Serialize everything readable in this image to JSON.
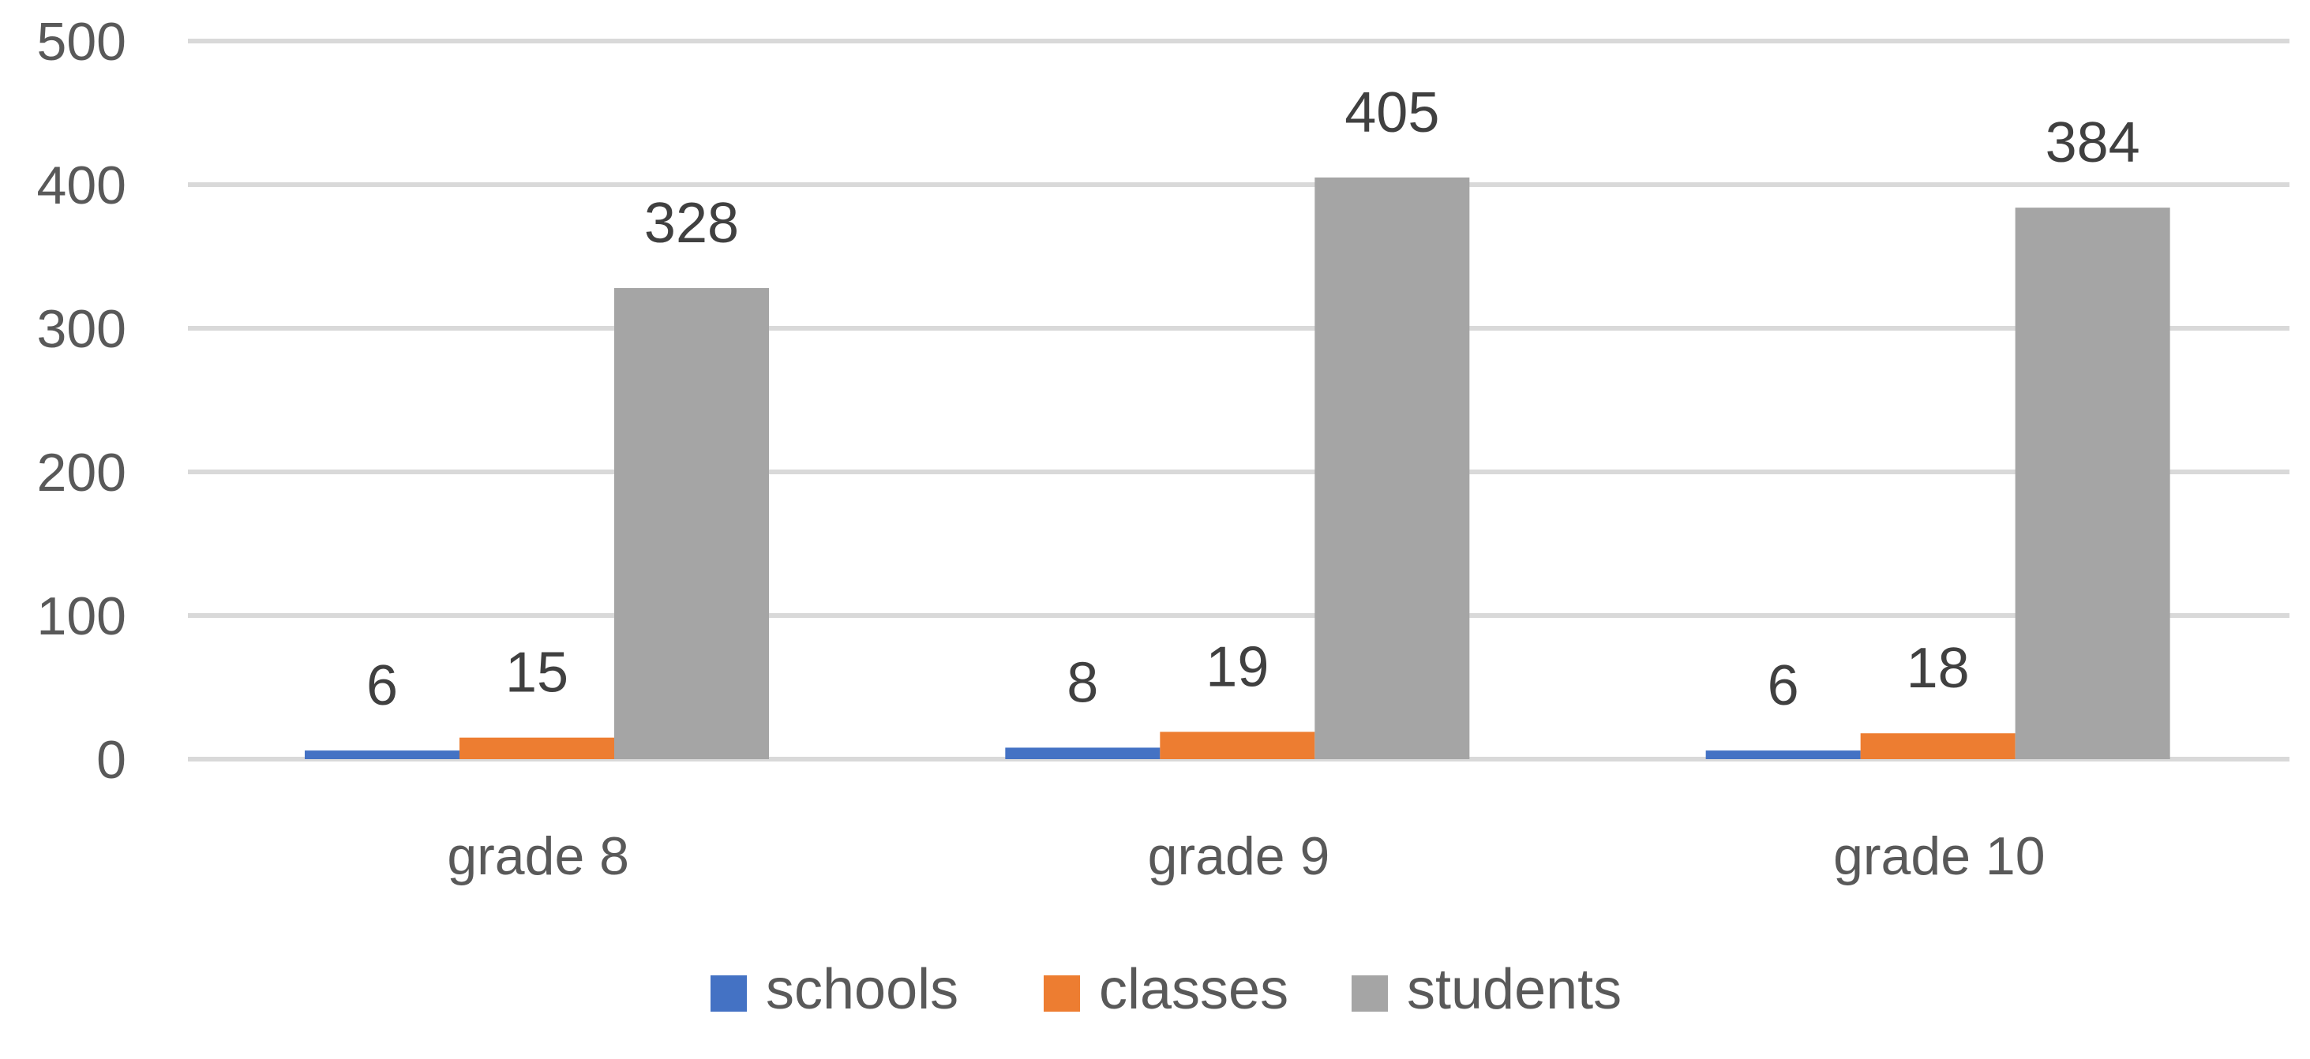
{
  "chart_data": {
    "type": "bar",
    "categories": [
      "grade 8",
      "grade 9",
      "grade 10"
    ],
    "series": [
      {
        "name": "schools",
        "values": [
          6,
          8,
          6
        ],
        "color": "#4472c4"
      },
      {
        "name": "classes",
        "values": [
          15,
          19,
          18
        ],
        "color": "#ed7d31"
      },
      {
        "name": "students",
        "values": [
          328,
          405,
          384
        ],
        "color": "#a5a5a5"
      }
    ],
    "title": "",
    "xlabel": "",
    "ylabel": "",
    "ylim": [
      0,
      500
    ],
    "yticks": [
      "0",
      "100",
      "200",
      "300",
      "400",
      "500"
    ],
    "grid": true,
    "legend_position": "bottom",
    "data_labels": true
  }
}
